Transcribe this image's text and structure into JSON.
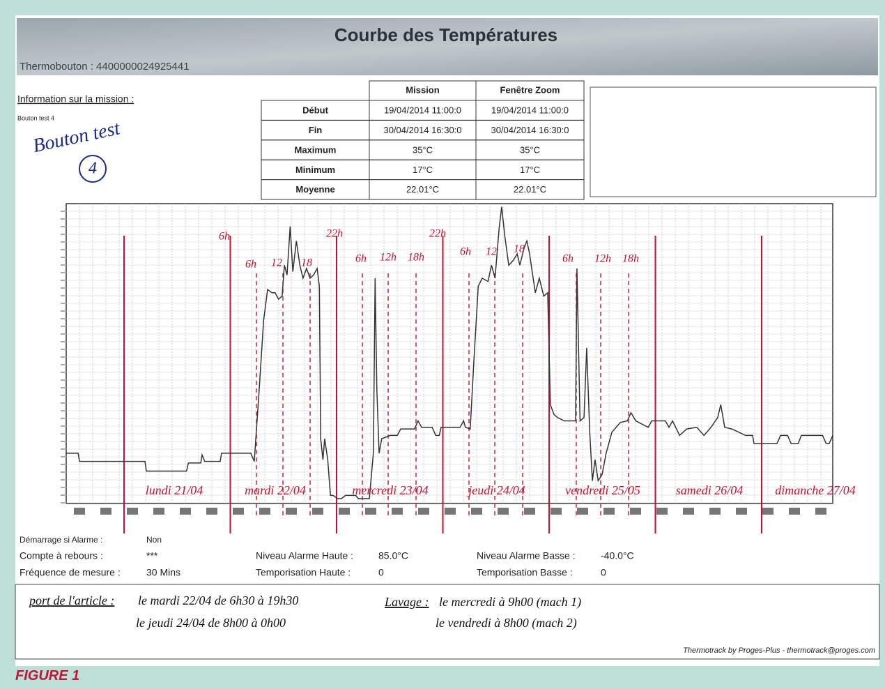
{
  "header": {
    "title": "Courbe des Températures",
    "device": "Thermobouton : 4400000024925441"
  },
  "mission": {
    "heading": "Information sur la mission :",
    "name": "Bouton test 4",
    "handwritten": "Bouton test",
    "handwritten_number": "4"
  },
  "table": {
    "columns": [
      "Mission",
      "Fenêtre Zoom"
    ],
    "rows": [
      [
        "Début",
        "19/04/2014 11:00:0",
        "19/04/2014 11:00:0"
      ],
      [
        "Fin",
        "30/04/2014 16:30:0",
        "30/04/2014 16:30:0"
      ],
      [
        "Maximum",
        "35°C",
        "35°C"
      ],
      [
        "Minimum",
        "17°C",
        "17°C"
      ],
      [
        "Moyenne",
        "22.01°C",
        "22.01°C"
      ]
    ]
  },
  "chart": {
    "type": "line",
    "color": "#333333",
    "xlim": [
      0,
      173.2
    ],
    "ylim": [
      16.7,
      35.2
    ],
    "x": [
      0,
      2.7,
      3.0,
      17.8,
      18.1,
      27.2,
      27.6,
      30.4,
      30.7,
      31.3,
      34.8,
      35.1,
      41.7,
      42.5,
      43.6,
      44.6,
      45.5,
      46.5,
      47.2,
      48.0,
      48.8,
      49.3,
      49.9,
      50.6,
      51.2,
      52.0,
      52.8,
      53.5,
      54.3,
      55.1,
      55.9,
      56.7,
      57.2,
      57.5,
      58.0,
      58.4,
      59.1,
      59.7,
      60.3,
      61.3,
      62.2,
      63.1,
      65.4,
      66.0,
      68.5,
      69.4,
      69.8,
      70.2,
      70.7,
      71.3,
      73.2,
      74.8,
      75.6,
      78.7,
      79.5,
      80.3,
      82.7,
      83.5,
      84.3,
      84.7,
      89.0,
      89.8,
      90.2,
      91.3,
      92.1,
      93.1,
      94.0,
      95.3,
      96.1,
      96.9,
      97.8,
      98.4,
      99.1,
      100.0,
      101.0,
      101.9,
      102.5,
      103.5,
      104.1,
      104.7,
      105.4,
      106.0,
      106.9,
      107.9,
      108.8,
      109.4,
      110.2,
      111.0,
      112.6,
      115.1,
      115.4,
      116.1,
      117.0,
      117.6,
      118.3,
      118.9,
      119.5,
      120.2,
      121.1,
      122.0,
      123.3,
      125.2,
      126.8,
      127.6,
      128.7,
      131.5,
      132.3,
      135.4,
      136.2,
      137.0,
      138.6,
      140.2,
      142.5,
      144.1,
      145.7,
      147.2,
      147.9,
      148.8,
      150.4,
      153.5,
      155.1,
      155.4,
      160.6,
      161.4,
      163.0,
      163.8,
      165.4,
      166.1,
      170.9,
      171.7,
      172.4,
      173.2
    ],
    "values": [
      19.8,
      19.8,
      19.3,
      19.3,
      18.7,
      18.7,
      19.2,
      19.2,
      19.7,
      19.3,
      19.3,
      19.8,
      19.8,
      19.3,
      23.7,
      28.0,
      29.9,
      29.7,
      29.7,
      29.3,
      29.5,
      31.4,
      30.8,
      33.8,
      31.0,
      32.9,
      31.4,
      30.6,
      31.2,
      30.6,
      30.8,
      31.2,
      30.1,
      20.7,
      19.4,
      20.7,
      19.4,
      17.2,
      17.2,
      17.0,
      17.0,
      17.2,
      17.2,
      17.0,
      17.0,
      19.8,
      30.6,
      23.7,
      19.8,
      20.7,
      20.9,
      20.9,
      21.3,
      21.3,
      21.8,
      21.4,
      21.4,
      20.9,
      20.9,
      21.4,
      21.4,
      21.8,
      21.4,
      21.3,
      25.4,
      30.1,
      30.6,
      30.4,
      31.4,
      30.6,
      33.6,
      35.0,
      33.2,
      31.4,
      31.7,
      32.1,
      31.4,
      32.5,
      32.9,
      32.1,
      30.8,
      29.7,
      30.6,
      29.5,
      29.7,
      22.8,
      22.2,
      22.0,
      21.8,
      21.8,
      31.2,
      21.8,
      22.0,
      26.3,
      21.1,
      18.1,
      19.4,
      18.1,
      18.5,
      19.8,
      21.1,
      21.7,
      21.8,
      22.3,
      21.8,
      21.4,
      21.8,
      21.8,
      21.4,
      21.8,
      20.9,
      21.3,
      21.4,
      20.9,
      21.4,
      22.0,
      22.8,
      21.4,
      21.3,
      20.9,
      20.9,
      20.4,
      20.4,
      20.9,
      20.9,
      20.4,
      20.4,
      20.9,
      20.9,
      20.4,
      20.4,
      20.9
    ],
    "day_labels": [
      "lundi 21/04",
      "mardi 22/04",
      "mercredi 23/04",
      "jeudi 24/04",
      "vendredi 25/05",
      "samedi 26/04",
      "dimanche 27/04"
    ],
    "hour_labels": [
      "6h",
      "6h",
      "12",
      "18",
      "22h",
      "6h",
      "12h",
      "18h",
      "22h",
      "6h",
      "12",
      "18",
      "6h",
      "12h",
      "18h"
    ]
  },
  "settings": {
    "left": [
      [
        "Démarrage si Alarme :",
        "Non"
      ],
      [
        "Compte à rebours :",
        "***"
      ],
      [
        "Fréquence de mesure :",
        "30 Mins"
      ]
    ],
    "middle": [
      [
        "Niveau Alarme Haute :",
        "85.0°C"
      ],
      [
        "Temporisation Haute :",
        "0"
      ]
    ],
    "right": [
      [
        "Niveau Alarme Basse :",
        "-40.0°C"
      ],
      [
        "Temporisation Basse :",
        "0"
      ]
    ]
  },
  "notes": {
    "port_label": "port de l'article :",
    "port_lines": [
      "le mardi 22/04 de 6h30 à 19h30",
      "le jeudi 24/04 de 8h00 à 0h00"
    ],
    "lavage_label": "Lavage :",
    "lavage_lines": [
      "le mercredi à 9h00 (mach 1)",
      "le vendredi à 8h00 (mach 2)"
    ]
  },
  "footer": "Thermotrack by Proges-Plus - thermotrack@proges.com",
  "caption": "FIGURE 1"
}
